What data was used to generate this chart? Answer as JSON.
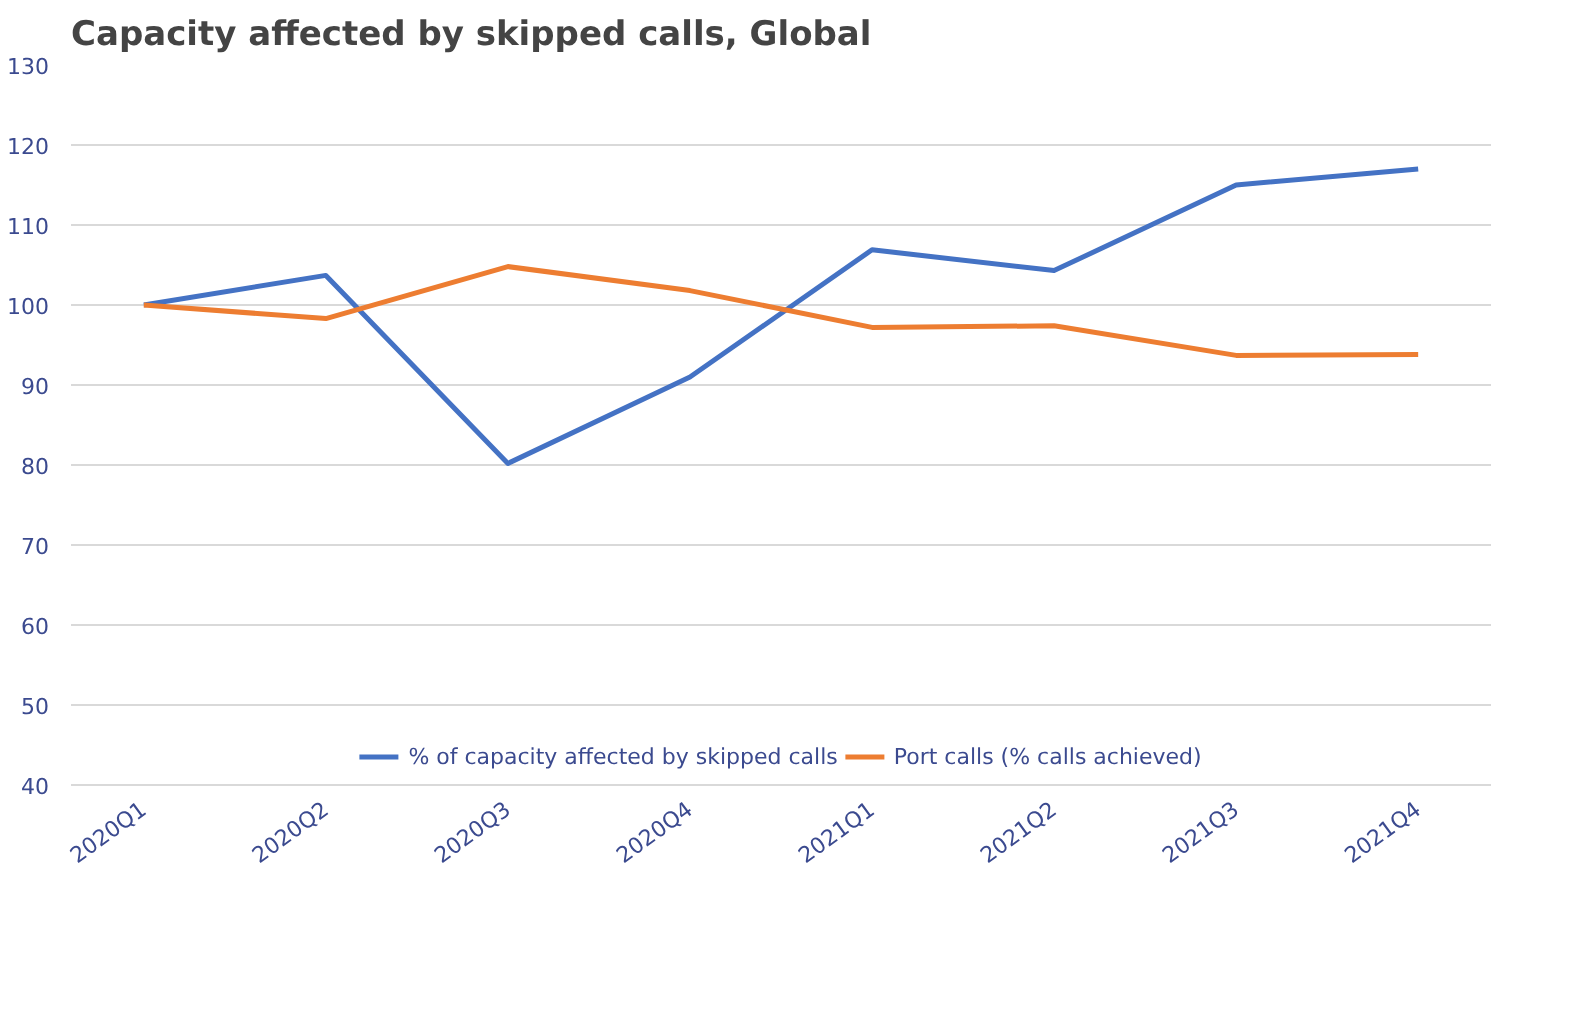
{
  "chart_data": {
    "type": "line",
    "title": "Capacity affected by skipped calls, Global",
    "categories": [
      "2020Q1",
      "2020Q2",
      "2020Q3",
      "2020Q4",
      "2021Q1",
      "2021Q2",
      "2021Q3",
      "2021Q4"
    ],
    "series": [
      {
        "name": "% of capacity affected by skipped calls",
        "color": "#4472c4",
        "values": [
          100,
          103.7,
          80.2,
          91,
          106.9,
          104.3,
          115,
          117
        ]
      },
      {
        "name": "Port calls (% calls achieved)",
        "color": "#ed7d31",
        "values": [
          100,
          98.3,
          104.8,
          101.8,
          97.2,
          97.4,
          93.7,
          93.8
        ]
      }
    ],
    "ylim": [
      40,
      130
    ],
    "yticks": [
      40,
      50,
      60,
      70,
      80,
      90,
      100,
      110,
      120,
      130
    ],
    "grid": "y",
    "legend": "bottom",
    "marker": "none",
    "line_style": "solid"
  }
}
